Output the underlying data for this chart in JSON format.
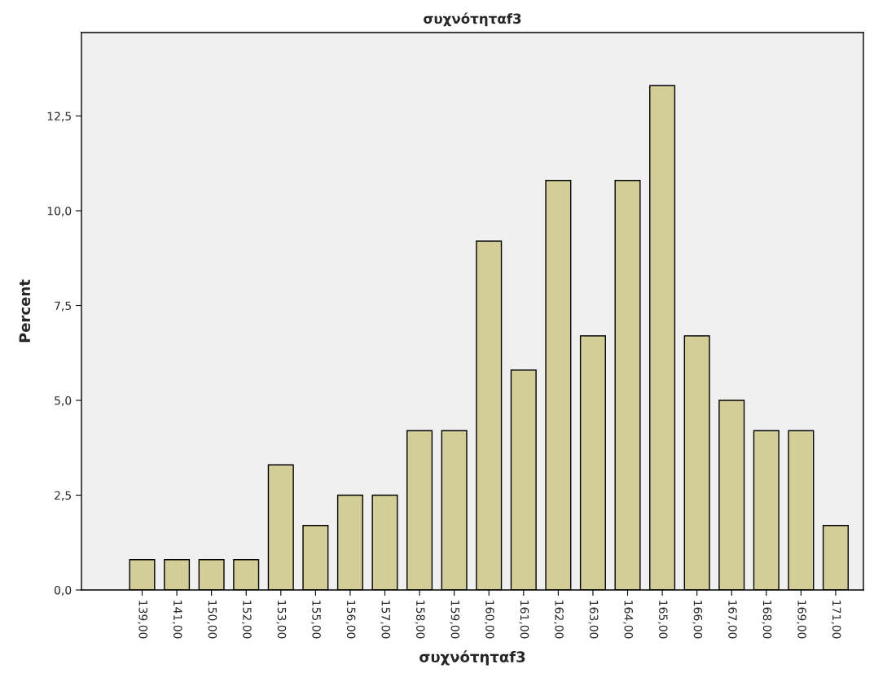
{
  "chart_data": {
    "type": "bar",
    "title": "συχνότηταf3",
    "xlabel": "συχνότηταf3",
    "ylabel": "Percent",
    "categories": [
      "139,00",
      "141,00",
      "150,00",
      "152,00",
      "153,00",
      "155,00",
      "156,00",
      "157,00",
      "158,00",
      "159,00",
      "160,00",
      "161,00",
      "162,00",
      "163,00",
      "164,00",
      "165,00",
      "166,00",
      "167,00",
      "168,00",
      "169,00",
      "171,00"
    ],
    "values": [
      0.8,
      0.8,
      0.8,
      0.8,
      3.3,
      1.7,
      2.5,
      2.5,
      4.2,
      4.2,
      9.2,
      5.8,
      10.8,
      6.7,
      10.8,
      13.3,
      6.7,
      5.0,
      4.2,
      4.2,
      1.7
    ],
    "color": "#d3ce97",
    "ylim": [
      0,
      14.7
    ],
    "yticks": [
      {
        "value": 0,
        "label": "0,0"
      },
      {
        "value": 2.5,
        "label": "2,5"
      },
      {
        "value": 5,
        "label": "5,0"
      },
      {
        "value": 7.5,
        "label": "7,5"
      },
      {
        "value": 10,
        "label": "10,0"
      },
      {
        "value": 12.5,
        "label": "12,5"
      }
    ],
    "grid": false
  }
}
